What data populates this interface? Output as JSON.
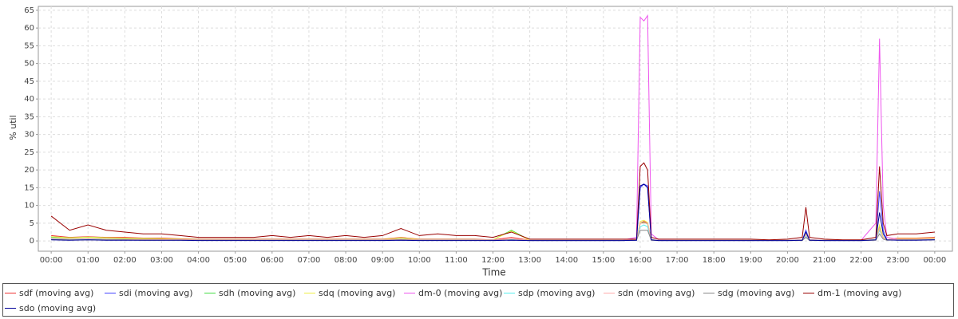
{
  "chart_data": {
    "type": "line",
    "x_label": "Time",
    "y_label": "% util",
    "xlim": [
      -0.35,
      24.48
    ],
    "ylim": [
      -2.9,
      66.1
    ],
    "xticks": [
      {
        "value": 0,
        "label": "00:00"
      },
      {
        "value": 1,
        "label": "01:00"
      },
      {
        "value": 2,
        "label": "02:00"
      },
      {
        "value": 3,
        "label": "03:00"
      },
      {
        "value": 4,
        "label": "04:00"
      },
      {
        "value": 5,
        "label": "05:00"
      },
      {
        "value": 6,
        "label": "06:00"
      },
      {
        "value": 7,
        "label": "07:00"
      },
      {
        "value": 8,
        "label": "08:00"
      },
      {
        "value": 9,
        "label": "09:00"
      },
      {
        "value": 10,
        "label": "10:00"
      },
      {
        "value": 11,
        "label": "11:00"
      },
      {
        "value": 12,
        "label": "12:00"
      },
      {
        "value": 13,
        "label": "13:00"
      },
      {
        "value": 14,
        "label": "14:00"
      },
      {
        "value": 15,
        "label": "15:00"
      },
      {
        "value": 16,
        "label": "16:00"
      },
      {
        "value": 17,
        "label": "17:00"
      },
      {
        "value": 18,
        "label": "18:00"
      },
      {
        "value": 19,
        "label": "19:00"
      },
      {
        "value": 20,
        "label": "20:00"
      },
      {
        "value": 21,
        "label": "21:00"
      },
      {
        "value": 22,
        "label": "22:00"
      },
      {
        "value": 23,
        "label": "23:00"
      },
      {
        "value": 24,
        "label": "00:00"
      }
    ],
    "yticks": [
      0,
      5,
      10,
      15,
      20,
      25,
      30,
      35,
      40,
      45,
      50,
      55,
      60,
      65
    ],
    "grid": true,
    "x": [
      0,
      0.5,
      1,
      1.5,
      2,
      2.5,
      3,
      3.5,
      4,
      4.5,
      5,
      5.5,
      6,
      6.5,
      7,
      7.5,
      8,
      8.5,
      9,
      9.5,
      10,
      10.5,
      11,
      11.5,
      12,
      12.5,
      13,
      13.5,
      14,
      14.5,
      15,
      15.5,
      15.9,
      16.0,
      16.1,
      16.2,
      16.3,
      16.5,
      17,
      17.5,
      18,
      18.5,
      19,
      19.5,
      20,
      20.4,
      20.5,
      20.6,
      21,
      21.5,
      22,
      22.4,
      22.5,
      22.6,
      22.7,
      23,
      23.5,
      24
    ],
    "series": [
      {
        "name": "sdf (moving avg)",
        "color": "#ee3333",
        "values": [
          1.5,
          1,
          1.2,
          1,
          1,
          0.8,
          0.8,
          0.6,
          0.5,
          0.5,
          0.5,
          0.5,
          0.5,
          0.5,
          0.5,
          0.5,
          0.5,
          0.5,
          0.5,
          1,
          0.5,
          0.5,
          0.5,
          0.5,
          0.3,
          1,
          0.2,
          0.2,
          0.2,
          0.2,
          0.2,
          0.2,
          0.3,
          5,
          5.5,
          5,
          0.3,
          0.2,
          0.2,
          0.2,
          0.2,
          0.2,
          0.2,
          0.2,
          0.2,
          0.3,
          2,
          0.3,
          0.2,
          0.2,
          0.2,
          0.3,
          4,
          1,
          0.3,
          0.8,
          0.8,
          1
        ]
      },
      {
        "name": "sdi (moving avg)",
        "color": "#4444ff",
        "values": [
          0.5,
          0.3,
          0.4,
          0.3,
          0.3,
          0.3,
          0.3,
          0.3,
          0.2,
          0.2,
          0.2,
          0.2,
          0.2,
          0.2,
          0.2,
          0.2,
          0.2,
          0.2,
          0.2,
          0.3,
          0.2,
          0.2,
          0.2,
          0.2,
          0.2,
          0.3,
          0.1,
          0.1,
          0.1,
          0.1,
          0.1,
          0.1,
          0.2,
          15,
          16,
          15.5,
          0.3,
          0.1,
          0.1,
          0.1,
          0.1,
          0.1,
          0.1,
          0.1,
          0.1,
          0.2,
          3,
          0.2,
          0.1,
          0.1,
          0.1,
          0.3,
          14,
          3,
          0.3,
          0.3,
          0.3,
          0.4
        ]
      },
      {
        "name": "sdh (moving avg)",
        "color": "#44dd44",
        "values": [
          1,
          0.8,
          1,
          0.8,
          0.7,
          0.6,
          0.6,
          0.5,
          0.4,
          0.4,
          0.4,
          0.4,
          0.4,
          0.4,
          0.4,
          0.4,
          0.4,
          0.4,
          0.4,
          0.8,
          0.4,
          0.4,
          0.4,
          0.4,
          0.3,
          3,
          0.2,
          0.2,
          0.2,
          0.2,
          0.2,
          0.2,
          0.3,
          5,
          5.2,
          4.8,
          0.3,
          0.2,
          0.2,
          0.2,
          0.2,
          0.2,
          0.2,
          0.2,
          0.2,
          0.3,
          2,
          0.3,
          0.2,
          0.2,
          0.2,
          0.3,
          4,
          1,
          0.3,
          0.6,
          0.6,
          0.7
        ]
      },
      {
        "name": "sdq (moving avg)",
        "color": "#eeee44",
        "values": [
          1.2,
          0.9,
          1.1,
          0.9,
          0.8,
          0.7,
          0.6,
          0.5,
          0.4,
          0.4,
          0.4,
          0.4,
          0.4,
          0.4,
          0.4,
          0.4,
          0.4,
          0.4,
          0.4,
          0.9,
          0.4,
          0.4,
          0.4,
          0.4,
          0.3,
          2.8,
          0.2,
          0.2,
          0.2,
          0.2,
          0.2,
          0.2,
          0.3,
          5.5,
          5.8,
          5.2,
          0.3,
          0.2,
          0.2,
          0.2,
          0.2,
          0.2,
          0.2,
          0.2,
          0.2,
          0.3,
          2.2,
          0.3,
          0.2,
          0.2,
          0.2,
          0.3,
          4.5,
          1,
          0.3,
          0.7,
          0.7,
          0.8
        ]
      },
      {
        "name": "dm-0 (moving avg)",
        "color": "#ee55ee",
        "values": [
          0.5,
          0.4,
          0.5,
          0.4,
          0.4,
          0.3,
          0.3,
          0.3,
          0.3,
          0.3,
          0.3,
          0.3,
          0.3,
          0.3,
          0.3,
          0.3,
          0.3,
          0.3,
          0.3,
          0.5,
          0.3,
          0.3,
          0.3,
          0.3,
          0.3,
          0.5,
          0.2,
          0.2,
          0.2,
          0.2,
          0.2,
          0.2,
          1,
          63,
          62,
          63.5,
          2,
          0.3,
          0.2,
          0.2,
          0.2,
          0.2,
          0.2,
          0.2,
          0.2,
          0.3,
          1,
          0.3,
          0.2,
          0.2,
          0.2,
          5,
          57,
          10,
          1,
          0.5,
          0.5,
          0.6
        ]
      },
      {
        "name": "sdp (moving avg)",
        "color": "#55eeee",
        "values": [
          0.6,
          0.4,
          0.5,
          0.4,
          0.4,
          0.3,
          0.3,
          0.3,
          0.3,
          0.3,
          0.3,
          0.3,
          0.3,
          0.3,
          0.3,
          0.3,
          0.3,
          0.3,
          0.3,
          0.4,
          0.3,
          0.3,
          0.3,
          0.3,
          0.2,
          0.5,
          0.2,
          0.2,
          0.2,
          0.2,
          0.2,
          0.2,
          0.3,
          4,
          4.5,
          4,
          0.3,
          0.2,
          0.2,
          0.2,
          0.2,
          0.2,
          0.2,
          0.2,
          0.2,
          0.2,
          1.5,
          0.2,
          0.2,
          0.2,
          0.2,
          0.3,
          3,
          0.8,
          0.3,
          0.4,
          0.4,
          0.5
        ]
      },
      {
        "name": "sdn (moving avg)",
        "color": "#ffaaaa",
        "values": [
          0.7,
          0.5,
          0.6,
          0.5,
          0.5,
          0.4,
          0.4,
          0.4,
          0.3,
          0.3,
          0.3,
          0.3,
          0.3,
          0.3,
          0.3,
          0.3,
          0.3,
          0.3,
          0.3,
          0.5,
          0.3,
          0.3,
          0.3,
          0.3,
          0.2,
          0.6,
          0.2,
          0.2,
          0.2,
          0.2,
          0.2,
          0.2,
          0.3,
          5,
          5,
          5,
          0.3,
          0.2,
          0.2,
          0.2,
          0.2,
          0.2,
          0.2,
          0.2,
          0.2,
          0.2,
          1.8,
          0.2,
          0.2,
          0.2,
          0.2,
          0.3,
          3.5,
          0.8,
          0.3,
          0.5,
          0.5,
          0.6
        ]
      },
      {
        "name": "sdg (moving avg)",
        "color": "#888888",
        "values": [
          0.4,
          0.3,
          0.3,
          0.3,
          0.3,
          0.2,
          0.2,
          0.2,
          0.2,
          0.2,
          0.2,
          0.2,
          0.2,
          0.2,
          0.2,
          0.2,
          0.2,
          0.2,
          0.2,
          0.3,
          0.2,
          0.2,
          0.2,
          0.2,
          0.2,
          0.3,
          0.1,
          0.1,
          0.1,
          0.1,
          0.1,
          0.1,
          0.2,
          3,
          3,
          3,
          0.2,
          0.1,
          0.1,
          0.1,
          0.1,
          0.1,
          0.1,
          0.1,
          0.1,
          0.1,
          1,
          0.1,
          0.1,
          0.1,
          0.1,
          0.2,
          2,
          0.5,
          0.2,
          0.3,
          0.3,
          0.3
        ]
      },
      {
        "name": "dm-1 (moving avg)",
        "color": "#990000",
        "values": [
          7,
          3,
          4.5,
          3,
          2.5,
          2,
          2,
          1.5,
          1,
          1,
          1,
          1,
          1.5,
          1,
          1.5,
          1,
          1.5,
          1,
          1.5,
          3.5,
          1.5,
          2,
          1.5,
          1.5,
          1,
          2.5,
          0.5,
          0.5,
          0.5,
          0.5,
          0.5,
          0.5,
          0.5,
          21,
          22,
          20,
          1,
          0.5,
          0.5,
          0.5,
          0.5,
          0.5,
          0.5,
          0.3,
          0.5,
          1,
          9.5,
          1,
          0.5,
          0.3,
          0.3,
          1,
          21,
          5,
          1.5,
          2,
          2,
          2.5
        ]
      },
      {
        "name": "sdo (moving avg)",
        "color": "#000099",
        "values": [
          0.3,
          0.2,
          0.3,
          0.2,
          0.2,
          0.2,
          0.2,
          0.2,
          0.1,
          0.1,
          0.1,
          0.1,
          0.1,
          0.1,
          0.1,
          0.1,
          0.1,
          0.1,
          0.1,
          0.2,
          0.1,
          0.1,
          0.1,
          0.1,
          0.1,
          0.2,
          0.1,
          0.1,
          0.1,
          0.1,
          0.1,
          0.1,
          0.2,
          15.5,
          16,
          15,
          0.3,
          0.1,
          0.1,
          0.1,
          0.1,
          0.1,
          0.1,
          0.1,
          0.1,
          0.2,
          2.5,
          0.2,
          0.1,
          0.1,
          0.1,
          0.3,
          8,
          2,
          0.3,
          0.2,
          0.2,
          0.3
        ]
      }
    ]
  }
}
